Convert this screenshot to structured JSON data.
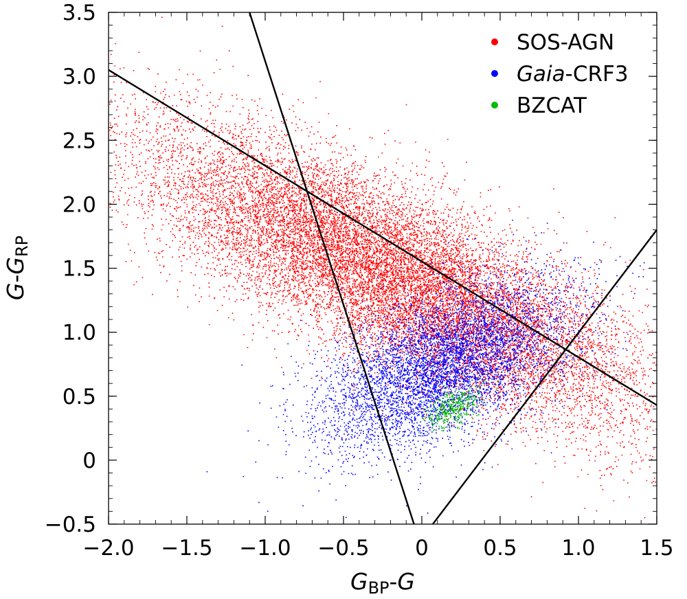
{
  "chart_data": {
    "type": "scatter",
    "title": "",
    "xlabel": {
      "main": "G",
      "sub": "BP",
      "sep": "-",
      "tail": "G"
    },
    "ylabel": {
      "main": "G",
      "sep": "-",
      "tail": "G",
      "sub": "RP"
    },
    "xlim": [
      -2.0,
      1.5
    ],
    "ylim": [
      -0.5,
      3.5
    ],
    "x_ticks": [
      -2.0,
      -1.5,
      -1.0,
      -0.5,
      0,
      0.5,
      1.0,
      1.5
    ],
    "x_tick_labels": [
      "−2.0",
      "−1.5",
      "−1.0",
      "−0.5",
      "0",
      "0.5",
      "1.0",
      "1.5"
    ],
    "y_ticks": [
      -0.5,
      0,
      0.5,
      1.0,
      1.5,
      2.0,
      2.5,
      3.0,
      3.5
    ],
    "y_tick_labels": [
      "−0.5",
      "0",
      "0.5",
      "1.0",
      "1.5",
      "2.0",
      "2.5",
      "3.0",
      "3.5"
    ],
    "grid": false,
    "legend_position": "top-right",
    "series": [
      {
        "name": "SOS-AGN",
        "italic_prefix": "",
        "suffix": "SOS-AGN",
        "color": "#ff0000",
        "density": {
          "center": [
            -0.2,
            1.45
          ],
          "major_sigma": 0.95,
          "minor_sigma": 0.3,
          "angle_deg": -33,
          "count": 16000
        }
      },
      {
        "name": "Gaia-CRF3",
        "italic_prefix": "Gaia",
        "suffix": "-CRF3",
        "color": "#0000ff",
        "density": {
          "center": [
            0.15,
            0.75
          ],
          "major_sigma": 0.45,
          "minor_sigma": 0.24,
          "angle_deg": 35,
          "count": 6000
        }
      },
      {
        "name": "BZCAT",
        "italic_prefix": "",
        "suffix": "BZCAT",
        "color": "#00bb00",
        "density": {
          "center": [
            0.2,
            0.42
          ],
          "major_sigma": 0.1,
          "minor_sigma": 0.06,
          "angle_deg": 40,
          "count": 400
        }
      }
    ],
    "lines": [
      {
        "x1": -1.1,
        "y1": 3.5,
        "x2": -0.05,
        "y2": -0.5
      },
      {
        "x1": -2.0,
        "y1": 3.05,
        "x2": 1.5,
        "y2": 0.43
      },
      {
        "x1": 0.07,
        "y1": -0.5,
        "x2": 1.5,
        "y2": 1.8
      }
    ]
  }
}
